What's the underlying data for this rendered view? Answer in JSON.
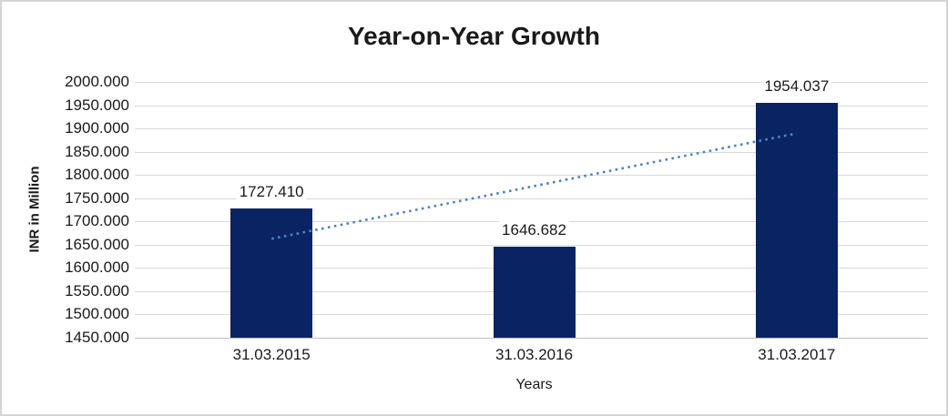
{
  "figure": {
    "background": "#FFFFFF",
    "border_color": "#D5D5D5"
  },
  "chart_data": {
    "type": "bar",
    "title": "Year-on-Year Growth",
    "xlabel": "Years",
    "ylabel": "INR in Million",
    "categories": [
      "31.03.2015",
      "31.03.2016",
      "31.03.2017"
    ],
    "values": [
      1727.41,
      1646.682,
      1954.037
    ],
    "data_labels": [
      "1727.410",
      "1646.682",
      "1954.037"
    ],
    "ylim": [
      1450,
      2000
    ],
    "y_tick_interval": 50,
    "y_tick_labels_top_to_bottom": [
      "2000.000",
      "1950.000",
      "1900.000",
      "1850.000",
      "1800.000",
      "1750.000",
      "1700.000",
      "1650.000",
      "1600.000",
      "1550.000",
      "1500.000",
      "1450.000"
    ],
    "grid": true,
    "legend_position": "none",
    "trendline": {
      "type": "linear",
      "style": "dotted",
      "color": "#4E81C4"
    },
    "colors": {
      "bar": "#0A2463",
      "gridline": "#D9D9D9",
      "axis_line": "#BFBFBF",
      "text": "#1A1A1A",
      "trendline": "#4E81C4"
    }
  }
}
